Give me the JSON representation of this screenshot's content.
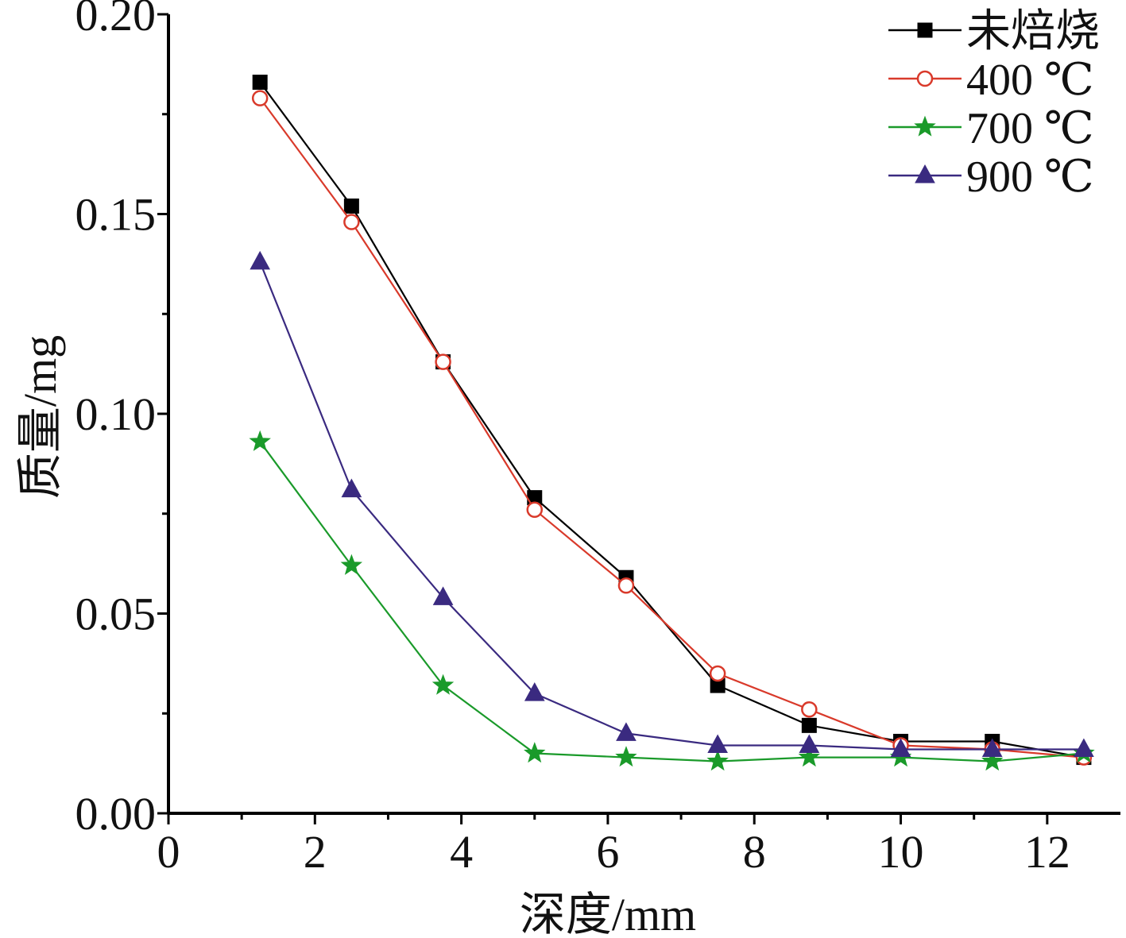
{
  "chart_data": {
    "type": "line",
    "xlabel": "深度/mm",
    "ylabel": "质量/mg",
    "xlim": [
      0,
      13
    ],
    "ylim": [
      0,
      0.2
    ],
    "xticks": [
      "0",
      "2",
      "4",
      "6",
      "8",
      "10",
      "12"
    ],
    "yticks": [
      "0.00",
      "0.05",
      "0.10",
      "0.15",
      "0.20"
    ],
    "grid": false,
    "legend_position": "top-right",
    "x": [
      1.25,
      2.5,
      3.75,
      5.0,
      6.25,
      7.5,
      8.75,
      10.0,
      11.25,
      12.5
    ],
    "series": [
      {
        "name": "未焙烧",
        "color": "#000000",
        "marker": "filled-square",
        "values": [
          0.183,
          0.152,
          0.113,
          0.079,
          0.059,
          0.032,
          0.022,
          0.018,
          0.018,
          0.014
        ]
      },
      {
        "name": "400 ℃",
        "color": "#d93a2b",
        "marker": "open-circle",
        "values": [
          0.179,
          0.148,
          0.113,
          0.076,
          0.057,
          0.035,
          0.026,
          0.017,
          0.016,
          0.014
        ]
      },
      {
        "name": "700 ℃",
        "color": "#1a9a2a",
        "marker": "star",
        "values": [
          0.093,
          0.062,
          0.032,
          0.015,
          0.014,
          0.013,
          0.014,
          0.014,
          0.013,
          0.015
        ]
      },
      {
        "name": "900 ℃",
        "color": "#3a2a80",
        "marker": "filled-triangle",
        "values": [
          0.138,
          0.081,
          0.054,
          0.03,
          0.02,
          0.017,
          0.017,
          0.016,
          0.016,
          0.016
        ]
      }
    ]
  }
}
